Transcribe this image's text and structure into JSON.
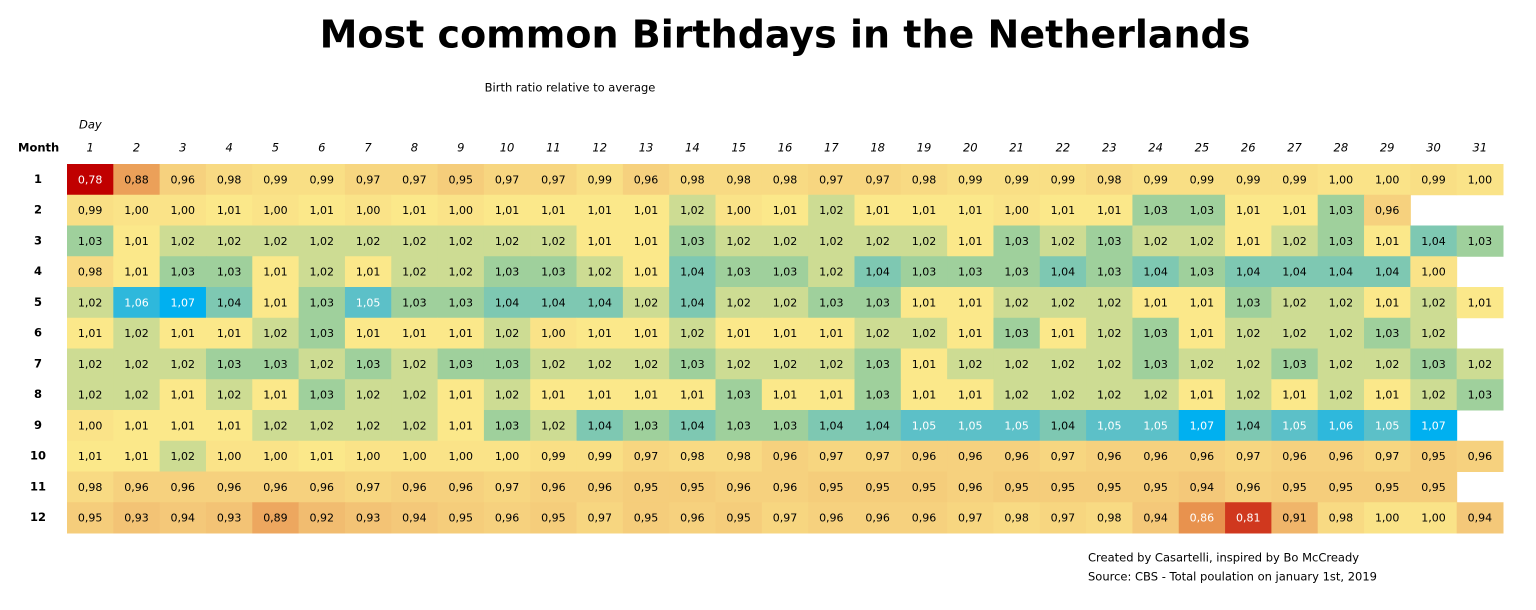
{
  "chart_data": {
    "type": "heatmap",
    "title": "Most common Birthdays in the Netherlands",
    "subtitle": "Birth ratio relative to average",
    "x_label": "Day",
    "y_label": "Month",
    "x": [
      1,
      2,
      3,
      4,
      5,
      6,
      7,
      8,
      9,
      10,
      11,
      12,
      13,
      14,
      15,
      16,
      17,
      18,
      19,
      20,
      21,
      22,
      23,
      24,
      25,
      26,
      27,
      28,
      29,
      30,
      31
    ],
    "y": [
      1,
      2,
      3,
      4,
      5,
      6,
      7,
      8,
      9,
      10,
      11,
      12
    ],
    "colormap": [
      "#c00000",
      "#e8904c",
      "#f3c577",
      "#fbe88a",
      "#9fd09c",
      "#5cc0c8",
      "#00b0f0"
    ],
    "values": [
      [
        0.78,
        0.88,
        0.96,
        0.98,
        0.99,
        0.99,
        0.97,
        0.97,
        0.95,
        0.97,
        0.97,
        0.99,
        0.96,
        0.98,
        0.98,
        0.98,
        0.97,
        0.97,
        0.98,
        0.99,
        0.99,
        0.99,
        0.98,
        0.99,
        0.99,
        0.99,
        0.99,
        1.0,
        1.0,
        0.99,
        1.0
      ],
      [
        0.99,
        1.0,
        1.0,
        1.01,
        1.0,
        1.01,
        1.0,
        1.01,
        1.0,
        1.01,
        1.01,
        1.01,
        1.01,
        1.02,
        1.0,
        1.01,
        1.02,
        1.01,
        1.01,
        1.01,
        1.0,
        1.01,
        1.01,
        1.03,
        1.03,
        1.01,
        1.01,
        1.03,
        0.96
      ],
      [
        1.03,
        1.01,
        1.02,
        1.02,
        1.02,
        1.02,
        1.02,
        1.02,
        1.02,
        1.02,
        1.02,
        1.01,
        1.01,
        1.03,
        1.02,
        1.02,
        1.02,
        1.02,
        1.02,
        1.01,
        1.03,
        1.02,
        1.03,
        1.02,
        1.02,
        1.01,
        1.02,
        1.03,
        1.01,
        1.04,
        1.03
      ],
      [
        0.98,
        1.01,
        1.03,
        1.03,
        1.01,
        1.02,
        1.01,
        1.02,
        1.02,
        1.03,
        1.03,
        1.02,
        1.01,
        1.04,
        1.03,
        1.03,
        1.02,
        1.04,
        1.03,
        1.03,
        1.03,
        1.04,
        1.03,
        1.04,
        1.03,
        1.04,
        1.04,
        1.04,
        1.04,
        1.0
      ],
      [
        1.02,
        1.06,
        1.07,
        1.04,
        1.01,
        1.03,
        1.05,
        1.03,
        1.03,
        1.04,
        1.04,
        1.04,
        1.02,
        1.04,
        1.02,
        1.02,
        1.03,
        1.03,
        1.01,
        1.01,
        1.02,
        1.02,
        1.02,
        1.01,
        1.01,
        1.03,
        1.02,
        1.02,
        1.01,
        1.02,
        1.01
      ],
      [
        1.01,
        1.02,
        1.01,
        1.01,
        1.02,
        1.03,
        1.01,
        1.01,
        1.01,
        1.02,
        1.0,
        1.01,
        1.01,
        1.02,
        1.01,
        1.01,
        1.01,
        1.02,
        1.02,
        1.01,
        1.03,
        1.01,
        1.02,
        1.03,
        1.01,
        1.02,
        1.02,
        1.02,
        1.03,
        1.02
      ],
      [
        1.02,
        1.02,
        1.02,
        1.03,
        1.03,
        1.02,
        1.03,
        1.02,
        1.03,
        1.03,
        1.02,
        1.02,
        1.02,
        1.03,
        1.02,
        1.02,
        1.02,
        1.03,
        1.01,
        1.02,
        1.02,
        1.02,
        1.02,
        1.03,
        1.02,
        1.02,
        1.03,
        1.02,
        1.02,
        1.03,
        1.02
      ],
      [
        1.02,
        1.02,
        1.01,
        1.02,
        1.01,
        1.03,
        1.02,
        1.02,
        1.01,
        1.02,
        1.01,
        1.01,
        1.01,
        1.01,
        1.03,
        1.01,
        1.01,
        1.03,
        1.01,
        1.01,
        1.02,
        1.02,
        1.02,
        1.02,
        1.01,
        1.02,
        1.01,
        1.02,
        1.01,
        1.02,
        1.03
      ],
      [
        1.0,
        1.01,
        1.01,
        1.01,
        1.02,
        1.02,
        1.02,
        1.02,
        1.01,
        1.03,
        1.02,
        1.04,
        1.03,
        1.04,
        1.03,
        1.03,
        1.04,
        1.04,
        1.05,
        1.05,
        1.05,
        1.04,
        1.05,
        1.05,
        1.07,
        1.04,
        1.05,
        1.06,
        1.05,
        1.07
      ],
      [
        1.01,
        1.01,
        1.02,
        1.0,
        1.0,
        1.01,
        1.0,
        1.0,
        1.0,
        1.0,
        0.99,
        0.99,
        0.97,
        0.98,
        0.98,
        0.96,
        0.97,
        0.97,
        0.96,
        0.96,
        0.96,
        0.97,
        0.96,
        0.96,
        0.96,
        0.97,
        0.96,
        0.96,
        0.97,
        0.95,
        0.96
      ],
      [
        0.98,
        0.96,
        0.96,
        0.96,
        0.96,
        0.96,
        0.97,
        0.96,
        0.96,
        0.97,
        0.96,
        0.96,
        0.95,
        0.95,
        0.96,
        0.96,
        0.95,
        0.95,
        0.95,
        0.96,
        0.95,
        0.95,
        0.95,
        0.95,
        0.94,
        0.96,
        0.95,
        0.95,
        0.95,
        0.95
      ],
      [
        0.95,
        0.93,
        0.94,
        0.93,
        0.89,
        0.92,
        0.93,
        0.94,
        0.95,
        0.96,
        0.95,
        0.97,
        0.95,
        0.96,
        0.95,
        0.97,
        0.96,
        0.96,
        0.96,
        0.97,
        0.98,
        0.97,
        0.98,
        0.94,
        0.86,
        0.81,
        0.91,
        0.98,
        1.0,
        1.0,
        0.94
      ]
    ],
    "value_labels": [
      [
        "0,78",
        "0,88",
        "0,96",
        "0,98",
        "0,99",
        "0,99",
        "0,97",
        "0,97",
        "0,95",
        "0,97",
        "0,97",
        "0,99",
        "0,96",
        "0,98",
        "0,98",
        "0,98",
        "0,97",
        "0,97",
        "0,98",
        "0,99",
        "0,99",
        "0,99",
        "0,98",
        "0,99",
        "0,99",
        "0,99",
        "0,99",
        "1,00",
        "1,00",
        "0,99",
        "1,00"
      ],
      [
        "0,99",
        "1,00",
        "1,00",
        "1,01",
        "1,00",
        "1,01",
        "1,00",
        "1,01",
        "1,00",
        "1,01",
        "1,01",
        "1,01",
        "1,01",
        "1,02",
        "1,00",
        "1,01",
        "1,02",
        "1,01",
        "1,01",
        "1,01",
        "1,00",
        "1,01",
        "1,01",
        "1,03",
        "1,03",
        "1,01",
        "1,01",
        "1,03",
        "0,96"
      ],
      [
        "1,03",
        "1,01",
        "1,02",
        "1,02",
        "1,02",
        "1,02",
        "1,02",
        "1,02",
        "1,02",
        "1,02",
        "1,02",
        "1,01",
        "1,01",
        "1,03",
        "1,02",
        "1,02",
        "1,02",
        "1,02",
        "1,02",
        "1,01",
        "1,03",
        "1,02",
        "1,03",
        "1,02",
        "1,02",
        "1,01",
        "1,02",
        "1,03",
        "1,01",
        "1,04",
        "1,03"
      ],
      [
        "0,98",
        "1,01",
        "1,03",
        "1,03",
        "1,01",
        "1,02",
        "1,01",
        "1,02",
        "1,02",
        "1,03",
        "1,03",
        "1,02",
        "1,01",
        "1,04",
        "1,03",
        "1,03",
        "1,02",
        "1,04",
        "1,03",
        "1,03",
        "1,03",
        "1,04",
        "1,03",
        "1,04",
        "1,03",
        "1,04",
        "1,04",
        "1,04",
        "1,04",
        "1,00"
      ],
      [
        "1,02",
        "1,06",
        "1,07",
        "1,04",
        "1,01",
        "1,03",
        "1,05",
        "1,03",
        "1,03",
        "1,04",
        "1,04",
        "1,04",
        "1,02",
        "1,04",
        "1,02",
        "1,02",
        "1,03",
        "1,03",
        "1,01",
        "1,01",
        "1,02",
        "1,02",
        "1,02",
        "1,01",
        "1,01",
        "1,03",
        "1,02",
        "1,02",
        "1,01",
        "1,02",
        "1,01"
      ],
      [
        "1,01",
        "1,02",
        "1,01",
        "1,01",
        "1,02",
        "1,03",
        "1,01",
        "1,01",
        "1,01",
        "1,02",
        "1,00",
        "1,01",
        "1,01",
        "1,02",
        "1,01",
        "1,01",
        "1,01",
        "1,02",
        "1,02",
        "1,01",
        "1,03",
        "1,01",
        "1,02",
        "1,03",
        "1,01",
        "1,02",
        "1,02",
        "1,02",
        "1,03",
        "1,02"
      ],
      [
        "1,02",
        "1,02",
        "1,02",
        "1,03",
        "1,03",
        "1,02",
        "1,03",
        "1,02",
        "1,03",
        "1,03",
        "1,02",
        "1,02",
        "1,02",
        "1,03",
        "1,02",
        "1,02",
        "1,02",
        "1,03",
        "1,01",
        "1,02",
        "1,02",
        "1,02",
        "1,02",
        "1,03",
        "1,02",
        "1,02",
        "1,03",
        "1,02",
        "1,02",
        "1,03",
        "1,02"
      ],
      [
        "1,02",
        "1,02",
        "1,01",
        "1,02",
        "1,01",
        "1,03",
        "1,02",
        "1,02",
        "1,01",
        "1,02",
        "1,01",
        "1,01",
        "1,01",
        "1,01",
        "1,03",
        "1,01",
        "1,01",
        "1,03",
        "1,01",
        "1,01",
        "1,02",
        "1,02",
        "1,02",
        "1,02",
        "1,01",
        "1,02",
        "1,01",
        "1,02",
        "1,01",
        "1,02",
        "1,03"
      ],
      [
        "1,00",
        "1,01",
        "1,01",
        "1,01",
        "1,02",
        "1,02",
        "1,02",
        "1,02",
        "1,01",
        "1,03",
        "1,02",
        "1,04",
        "1,03",
        "1,04",
        "1,03",
        "1,03",
        "1,04",
        "1,04",
        "1,05",
        "1,05",
        "1,05",
        "1,04",
        "1,05",
        "1,05",
        "1,07",
        "1,04",
        "1,05",
        "1,06",
        "1,05",
        "1,07"
      ],
      [
        "1,01",
        "1,01",
        "1,02",
        "1,00",
        "1,00",
        "1,01",
        "1,00",
        "1,00",
        "1,00",
        "1,00",
        "0,99",
        "0,99",
        "0,97",
        "0,98",
        "0,98",
        "0,96",
        "0,97",
        "0,97",
        "0,96",
        "0,96",
        "0,96",
        "0,97",
        "0,96",
        "0,96",
        "0,96",
        "0,97",
        "0,96",
        "0,96",
        "0,97",
        "0,95",
        "0,96"
      ],
      [
        "0,98",
        "0,96",
        "0,96",
        "0,96",
        "0,96",
        "0,96",
        "0,97",
        "0,96",
        "0,96",
        "0,97",
        "0,96",
        "0,96",
        "0,95",
        "0,95",
        "0,96",
        "0,96",
        "0,95",
        "0,95",
        "0,95",
        "0,96",
        "0,95",
        "0,95",
        "0,95",
        "0,95",
        "0,94",
        "0,96",
        "0,95",
        "0,95",
        "0,95",
        "0,95"
      ],
      [
        "0,95",
        "0,93",
        "0,94",
        "0,93",
        "0,89",
        "0,92",
        "0,93",
        "0,94",
        "0,95",
        "0,96",
        "0,95",
        "0,97",
        "0,95",
        "0,96",
        "0,95",
        "0,97",
        "0,96",
        "0,96",
        "0,96",
        "0,97",
        "0,98",
        "0,97",
        "0,98",
        "0,94",
        "0,86",
        "0,81",
        "0,91",
        "0,98",
        "1,00",
        "1,00",
        "0,94"
      ]
    ],
    "annotations": [
      "Created by Casartelli, inspired by Bo McCready",
      "Source: CBS - Total poulation on january 1st, 2019"
    ]
  }
}
